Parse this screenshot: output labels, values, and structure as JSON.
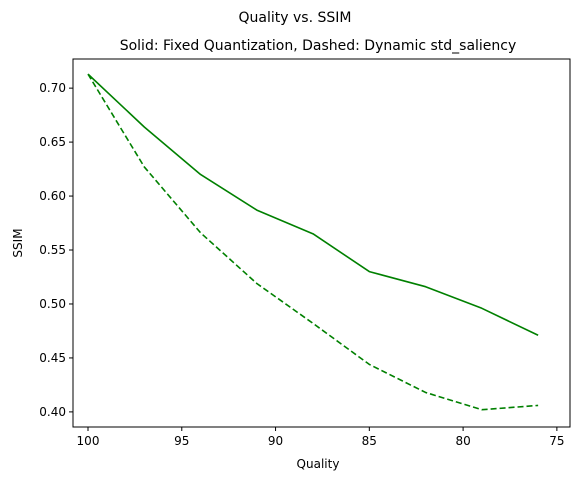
{
  "chart_data": {
    "type": "line",
    "suptitle": "Quality vs. SSIM",
    "title": "Solid: Fixed Quantization, Dashed: Dynamic std_saliency",
    "xlabel": "Quality",
    "ylabel": "SSIM",
    "x_inverted": true,
    "xlim": [
      100.8,
      74.3
    ],
    "ylim": [
      0.386,
      0.727
    ],
    "xticks": [
      100,
      95,
      90,
      85,
      80,
      75
    ],
    "yticks": [
      0.4,
      0.45,
      0.5,
      0.55,
      0.6,
      0.65,
      0.7
    ],
    "grid": false,
    "legend": null,
    "series": [
      {
        "style": "solid",
        "color": "#008000",
        "x": [
          100,
          97,
          94,
          91,
          88,
          85,
          82,
          79,
          76
        ],
        "y": [
          0.713,
          0.664,
          0.62,
          0.587,
          0.565,
          0.53,
          0.516,
          0.496,
          0.471
        ]
      },
      {
        "style": "dashed",
        "color": "#008000",
        "x": [
          100,
          97,
          94,
          91,
          88,
          85,
          82,
          79,
          76
        ],
        "y": [
          0.713,
          0.627,
          0.566,
          0.519,
          0.482,
          0.444,
          0.418,
          0.402,
          0.406
        ]
      }
    ]
  }
}
